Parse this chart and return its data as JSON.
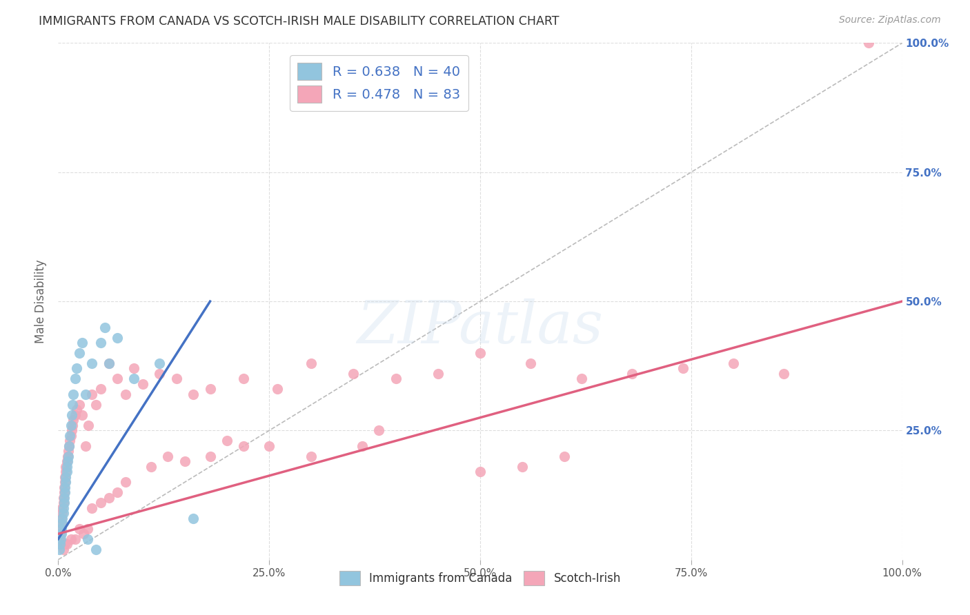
{
  "title": "IMMIGRANTS FROM CANADA VS SCOTCH-IRISH MALE DISABILITY CORRELATION CHART",
  "source": "Source: ZipAtlas.com",
  "ylabel": "Male Disability",
  "xlim": [
    0,
    1
  ],
  "ylim": [
    0,
    1
  ],
  "xticks": [
    0.0,
    0.25,
    0.5,
    0.75,
    1.0
  ],
  "yticks": [
    0.0,
    0.25,
    0.5,
    0.75,
    1.0
  ],
  "xticklabels_bottom": [
    "0.0%",
    "25.0%",
    "50.0%",
    "75.0%",
    "100.0%"
  ],
  "yticklabels_right": [
    "",
    "25.0%",
    "50.0%",
    "75.0%",
    "100.0%"
  ],
  "legend_labels": [
    "Immigrants from Canada",
    "Scotch-Irish"
  ],
  "R_blue": 0.638,
  "N_blue": 40,
  "R_pink": 0.478,
  "N_pink": 83,
  "blue_color": "#92C5DE",
  "pink_color": "#F4A6B8",
  "blue_line_color": "#4472C4",
  "pink_line_color": "#E06080",
  "dashed_line_color": "#BBBBBB",
  "background_color": "#FFFFFF",
  "grid_color": "#DDDDDD",
  "title_color": "#333333",
  "axis_tick_color": "#4472C4",
  "blue_x": [
    0.001,
    0.002,
    0.003,
    0.004,
    0.004,
    0.005,
    0.005,
    0.006,
    0.006,
    0.007,
    0.007,
    0.008,
    0.008,
    0.009,
    0.009,
    0.01,
    0.01,
    0.011,
    0.012,
    0.013,
    0.014,
    0.015,
    0.016,
    0.017,
    0.018,
    0.02,
    0.022,
    0.025,
    0.028,
    0.032,
    0.04,
    0.05,
    0.06,
    0.07,
    0.09,
    0.12,
    0.035,
    0.045,
    0.055,
    0.16
  ],
  "blue_y": [
    0.02,
    0.03,
    0.04,
    0.05,
    0.06,
    0.07,
    0.08,
    0.09,
    0.1,
    0.11,
    0.12,
    0.13,
    0.14,
    0.15,
    0.16,
    0.17,
    0.18,
    0.19,
    0.2,
    0.22,
    0.24,
    0.26,
    0.28,
    0.3,
    0.32,
    0.35,
    0.37,
    0.4,
    0.42,
    0.32,
    0.38,
    0.42,
    0.38,
    0.43,
    0.35,
    0.38,
    0.04,
    0.02,
    0.45,
    0.08
  ],
  "pink_x": [
    0.001,
    0.002,
    0.003,
    0.003,
    0.004,
    0.004,
    0.005,
    0.005,
    0.006,
    0.006,
    0.007,
    0.007,
    0.008,
    0.008,
    0.009,
    0.009,
    0.01,
    0.011,
    0.012,
    0.013,
    0.014,
    0.015,
    0.016,
    0.017,
    0.018,
    0.02,
    0.022,
    0.025,
    0.028,
    0.032,
    0.036,
    0.04,
    0.045,
    0.05,
    0.06,
    0.07,
    0.08,
    0.09,
    0.1,
    0.12,
    0.14,
    0.16,
    0.18,
    0.22,
    0.26,
    0.3,
    0.35,
    0.4,
    0.45,
    0.5,
    0.56,
    0.62,
    0.68,
    0.74,
    0.8,
    0.86,
    0.5,
    0.55,
    0.6,
    0.38,
    0.36,
    0.3,
    0.25,
    0.22,
    0.2,
    0.18,
    0.15,
    0.13,
    0.11,
    0.08,
    0.07,
    0.06,
    0.05,
    0.04,
    0.035,
    0.03,
    0.025,
    0.02,
    0.015,
    0.01,
    0.008,
    0.006,
    0.96
  ],
  "pink_y": [
    0.03,
    0.04,
    0.05,
    0.06,
    0.07,
    0.08,
    0.09,
    0.1,
    0.11,
    0.12,
    0.13,
    0.14,
    0.15,
    0.16,
    0.17,
    0.18,
    0.19,
    0.2,
    0.21,
    0.22,
    0.23,
    0.24,
    0.25,
    0.26,
    0.27,
    0.28,
    0.29,
    0.3,
    0.28,
    0.22,
    0.26,
    0.32,
    0.3,
    0.33,
    0.38,
    0.35,
    0.32,
    0.37,
    0.34,
    0.36,
    0.35,
    0.32,
    0.33,
    0.35,
    0.33,
    0.38,
    0.36,
    0.35,
    0.36,
    0.4,
    0.38,
    0.35,
    0.36,
    0.37,
    0.38,
    0.36,
    0.17,
    0.18,
    0.2,
    0.25,
    0.22,
    0.2,
    0.22,
    0.22,
    0.23,
    0.2,
    0.19,
    0.2,
    0.18,
    0.15,
    0.13,
    0.12,
    0.11,
    0.1,
    0.06,
    0.05,
    0.06,
    0.04,
    0.04,
    0.03,
    0.03,
    0.02,
    1.0
  ],
  "blue_line": {
    "x0": 0.0,
    "y0": 0.04,
    "x1": 0.18,
    "y1": 0.5
  },
  "pink_line": {
    "x0": 0.0,
    "y0": 0.05,
    "x1": 1.0,
    "y1": 0.5
  }
}
